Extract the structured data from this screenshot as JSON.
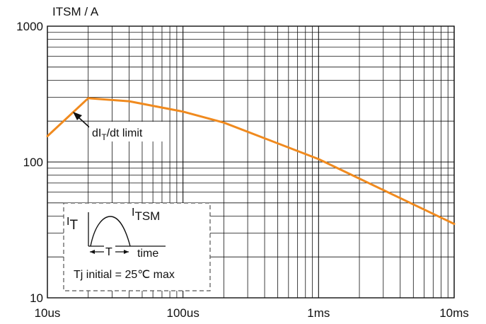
{
  "chart_data": {
    "type": "line",
    "title": "",
    "ylabel": "ITSM / A",
    "xlabel": "",
    "x_scale": "log",
    "y_scale": "log",
    "xlim_s": [
      1e-05,
      0.01
    ],
    "ylim": [
      10,
      1000
    ],
    "grid": true,
    "x_ticks": [
      {
        "value": 1e-05,
        "label": "10us"
      },
      {
        "value": 0.0001,
        "label": "100us"
      },
      {
        "value": 0.001,
        "label": "1ms"
      },
      {
        "value": 0.01,
        "label": "10ms"
      }
    ],
    "y_ticks": [
      {
        "value": 10,
        "label": "10"
      },
      {
        "value": 100,
        "label": "100"
      },
      {
        "value": 1000,
        "label": "1000"
      }
    ],
    "series": [
      {
        "color": "#f08a1e",
        "x": [
          1e-05,
          2e-05,
          4e-05,
          0.0001,
          0.0002,
          0.001,
          0.01
        ],
        "y": [
          155,
          295,
          280,
          235,
          195,
          105,
          35
        ]
      }
    ],
    "annotations": [
      {
        "text_main": "dI",
        "text_sub": "T",
        "text_rest": "/dt limit"
      }
    ],
    "inset": {
      "it_main": "I",
      "it_sub": "T",
      "itsm_main": "I",
      "itsm_sub": "TSM",
      "t_label": "T",
      "time_label": "time",
      "condition": "Tj initial = 25℃ max"
    }
  }
}
